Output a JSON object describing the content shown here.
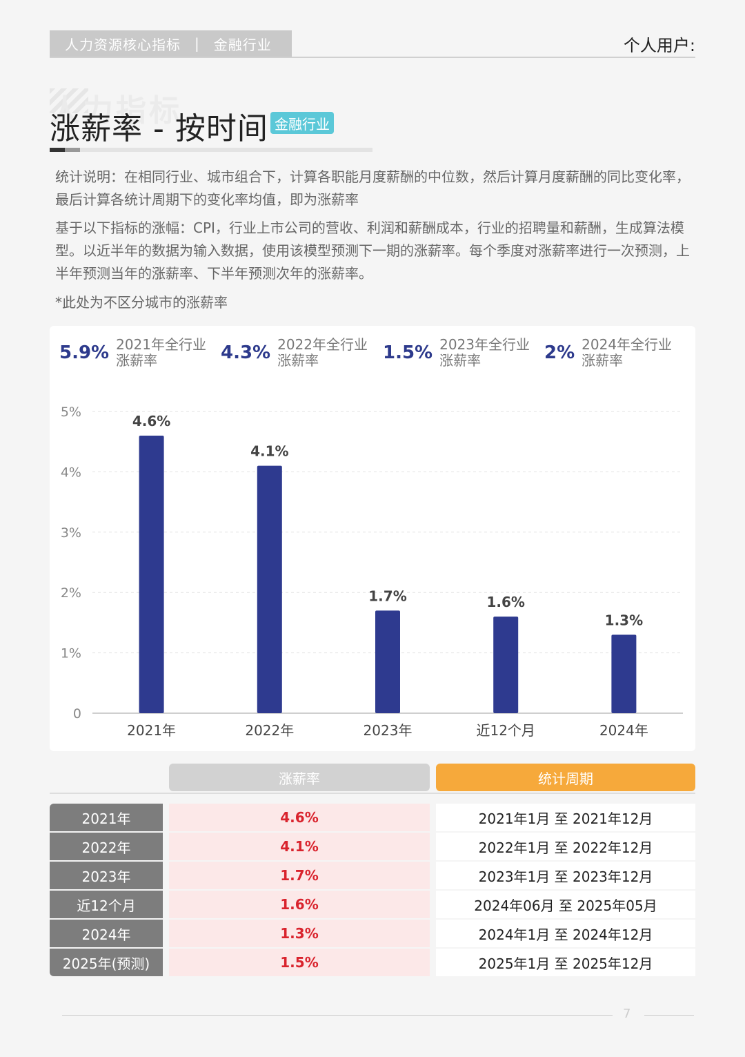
{
  "header": {
    "tab_left": "人力资源核心指标",
    "tab_sep": "|",
    "tab_right": "金融行业",
    "user": "个人用户:"
  },
  "title": {
    "watermark": "人力指标",
    "main": "涨薪率 - 按时间",
    "badge": "金融行业"
  },
  "description": {
    "p1": "统计说明：在相同行业、城市组合下，计算各职能月度薪酬的中位数，然后计算月度薪酬的同比变化率，最后计算各统计周期下的变化率均值，即为涨薪率",
    "p2": "基于以下指标的涨幅：CPI，行业上市公司的营收、利润和薪酬成本，行业的招聘量和薪酬，生成算法模型。以近半年的数据为输入数据，使用该模型预测下一期的涨薪率。每个季度对涨薪率进行一次预测，上半年预测当年的涨薪率、下半年预测次年的涨薪率。",
    "note": "*此处为不区分城市的涨薪率"
  },
  "stats": [
    {
      "value": "5.9%",
      "label1": "2021年全行业",
      "label2": "涨薪率"
    },
    {
      "value": "4.3%",
      "label1": "2022年全行业",
      "label2": "涨薪率"
    },
    {
      "value": "1.5%",
      "label1": "2023年全行业",
      "label2": "涨薪率"
    },
    {
      "value": "2%",
      "label1": "2024年全行业",
      "label2": "涨薪率"
    }
  ],
  "chart_data": {
    "type": "bar",
    "categories": [
      "2021年",
      "2022年",
      "2023年",
      "近12个月",
      "2024年"
    ],
    "values": [
      4.6,
      4.1,
      1.7,
      1.6,
      1.3
    ],
    "value_labels": [
      "4.6%",
      "4.1%",
      "1.7%",
      "1.6%",
      "1.3%"
    ],
    "y_ticks": [
      "0",
      "1%",
      "2%",
      "3%",
      "4%",
      "5%"
    ],
    "ylim": [
      0,
      5
    ],
    "grid": true,
    "bar_color": "#2e3a8f"
  },
  "table": {
    "header_rate": "涨薪率",
    "header_period": "统计周期",
    "rows": [
      {
        "label": "2021年",
        "rate": "4.6%",
        "period": "2021年1月 至 2021年12月"
      },
      {
        "label": "2022年",
        "rate": "4.1%",
        "period": "2022年1月 至 2022年12月"
      },
      {
        "label": "2023年",
        "rate": "1.7%",
        "period": "2023年1月 至 2023年12月"
      },
      {
        "label": "近12个月",
        "rate": "1.6%",
        "period": "2024年06月 至 2025年05月"
      },
      {
        "label": "2024年",
        "rate": "1.3%",
        "period": "2024年1月 至 2024年12月"
      },
      {
        "label": "2025年(预测)",
        "rate": "1.5%",
        "period": "2025年1月 至 2025年12月"
      }
    ]
  },
  "footer": {
    "page": "7"
  }
}
